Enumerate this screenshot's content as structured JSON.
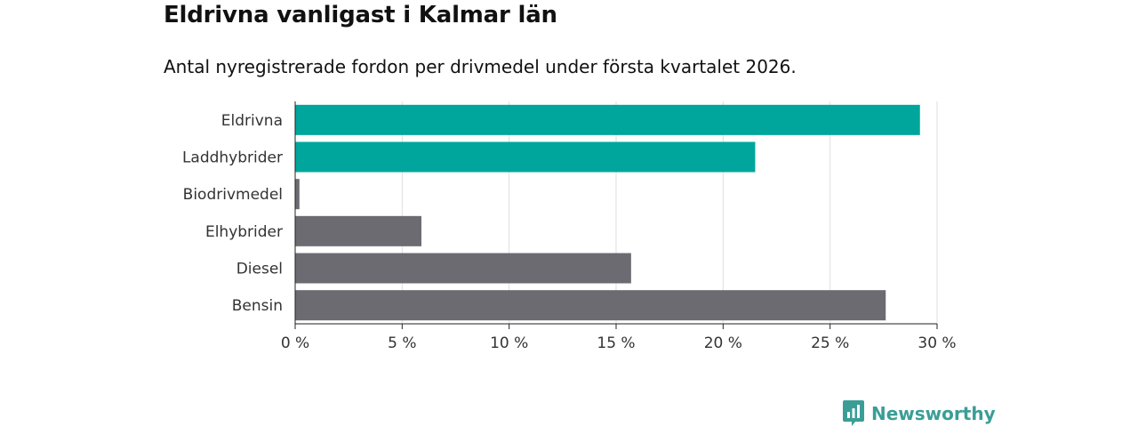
{
  "chart_data": {
    "type": "bar",
    "orientation": "horizontal",
    "title": "Eldrivna vanligast i Kalmar län",
    "subtitle": "Antal nyregistrerade fordon per drivmedel under första kvartalet 2026.",
    "categories": [
      "Eldrivna",
      "Laddhybrider",
      "Biodrivmedel",
      "Elhybrider",
      "Diesel",
      "Bensin"
    ],
    "values": [
      29.2,
      21.5,
      0.2,
      5.9,
      15.7,
      27.6
    ],
    "unit": "%",
    "xlim": [
      0,
      30
    ],
    "xticks": [
      0,
      5,
      10,
      15,
      20,
      25,
      30
    ],
    "xtick_labels": [
      "0 %",
      "5 %",
      "10 %",
      "15 %",
      "20 %",
      "25 %",
      "30 %"
    ],
    "highlighted": [
      "Eldrivna",
      "Laddhybrider"
    ],
    "xlabel": "",
    "ylabel": "",
    "grid": true
  },
  "colors": {
    "highlight": "#00a69b",
    "default": "#6c6b72",
    "grid": "#dedede",
    "axis": "#222222",
    "text": "#333333",
    "brand": "#3a9e96"
  },
  "branding": {
    "name": "Newsworthy",
    "icon": "newsworthy-logo-icon"
  }
}
